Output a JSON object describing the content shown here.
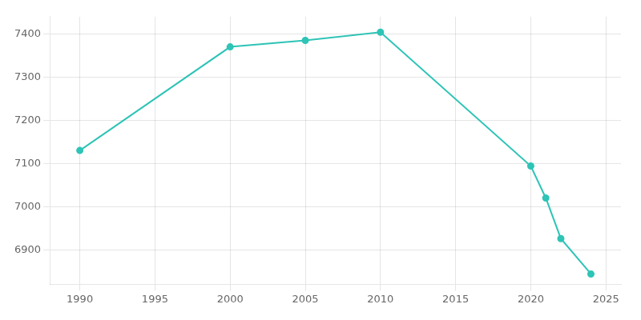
{
  "chart_data": {
    "type": "line",
    "x": [
      1990,
      2000,
      2005,
      2010,
      2020,
      2021,
      2022,
      2024
    ],
    "values": [
      7130,
      7370,
      7385,
      7404,
      7094,
      7020,
      6926,
      6844
    ],
    "color": "#2ec4b6",
    "marker": "o",
    "xlim": [
      1988,
      2026
    ],
    "ylim": [
      6820,
      7440
    ],
    "xticks": [
      1990,
      1995,
      2000,
      2005,
      2010,
      2015,
      2020,
      2025
    ],
    "yticks": [
      6900,
      7000,
      7100,
      7200,
      7300,
      7400
    ],
    "grid": true
  }
}
